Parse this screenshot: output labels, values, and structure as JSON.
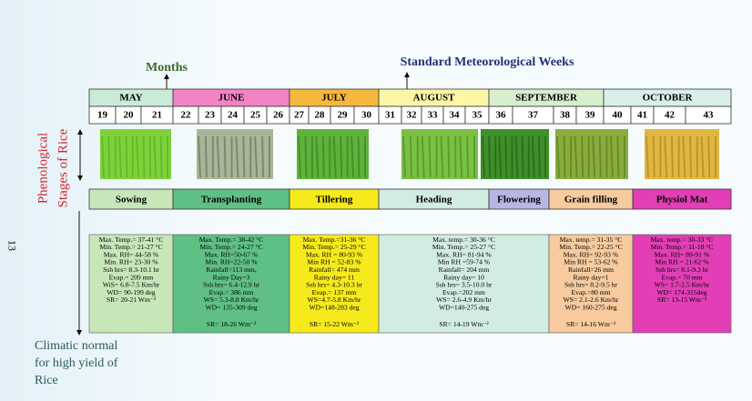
{
  "page_number": "13",
  "labels": {
    "months": "Months",
    "weeks": "Standard Meteorological Weeks",
    "stages_line1": "Phenological",
    "stages_line2": "Stages of Rice",
    "climatic_line1": "Climatic normal",
    "climatic_line2": "for high yield of",
    "climatic_line3": "Rice"
  },
  "months": [
    "MAY",
    "JUNE",
    "JULY",
    "AUGUST",
    "SEPTEMBER",
    "OCTOBER"
  ],
  "weeks": [
    "19",
    "20",
    "21",
    "22",
    "23",
    "24",
    "25",
    "26",
    "27",
    "28",
    "29",
    "30",
    "31",
    "32",
    "33",
    "34",
    "35",
    "36",
    "37",
    "38",
    "39",
    "40",
    "41",
    "42",
    "43"
  ],
  "stages": [
    "Sowing",
    "Transplanting",
    "Tillering",
    "Heading",
    "Flowering",
    "Grain filling",
    "Physiol Mat"
  ],
  "climate": [
    [
      "Max. Temp.= 37-41 °C",
      "Min. Temp.= 21-27 °C",
      "Max. RH= 44-58 %",
      "Min. RH= 23-30 %",
      "Ssh hrs= 8.3-10.1 hr",
      "Evap.= 209 mm",
      "WiS= 6.8-7.5 Km/hr",
      "WD= 90-199 deg",
      "SR= 20-21 Wm⁻²"
    ],
    [
      "Max. Temp.= 38-42 °C",
      "Min. Temp.= 24-27 °C",
      "Max. RH=50-67 %",
      "Min. RH=22-50 %",
      "Rainfall=113 mm,",
      "Rainy Day=3",
      "Ssh hrs= 6.4-12.9 hr",
      "Evap.= 386 mm",
      "WS= 5.3-8.8 Km/hr",
      "WD= 135-309 deg",
      "SR= 18-26 Wm⁻²"
    ],
    [
      "Max. Temp.=31-36 °C",
      "Min. Temp.= 25-29 °C",
      "Max. RH = 80-93 %",
      "Min RH = 52-83 %",
      "Rainfall= 474 mm",
      "Rainy day= 11",
      "Ssh hrs= 4.3-10.3 hr",
      "Evap.= 137 mm",
      "WS=4.7-5.8 Km/hr",
      "WD=148-283 deg",
      "SR= 15-22 Wm⁻²"
    ],
    [
      "Max. temp.= 30-36 °C",
      "Min. Temp.= 25-27 °C",
      "Max. RH= 81-94 %",
      "Min RH =59-74 %",
      "Rainfall= 204 mm",
      "Rainy day= 10",
      "Ssh hrs= 3.5-10.0 hr",
      "Evap.=202 mm",
      "WS= 2.6-4.9 Km/hr",
      "WD=140-275 deg",
      "SR= 14-19 Wm⁻²"
    ],
    [
      "Max. temp.= 31-35 °C",
      "Min. Temp.= 22-25 °C",
      "Max. RH= 92-93 %",
      "Min RH = 53-62 %",
      "Rainfall=26 mm",
      "Rainy day=1",
      "Ssh hrs= 8.2-9.5 hr",
      "Evap.=80 mm",
      "WS= 2.1-2.6 Km/hr",
      "WD= 160-275 deg",
      "SR= 14-16 Wm⁻²"
    ],
    [
      "Max. temp.= 30-33 °C",
      "Min. Temp.= 11-18 °C",
      "Max. RH= 89-91 %",
      "Min RH = 21-62 %",
      "Ssh hrs= 8.1-9.3 hr",
      "Evap.= 70 mm",
      "WS= 1.7-2.5 Km/hr",
      "WD= 174-315deg",
      "SR= 13-15 Wm⁻²"
    ]
  ]
}
